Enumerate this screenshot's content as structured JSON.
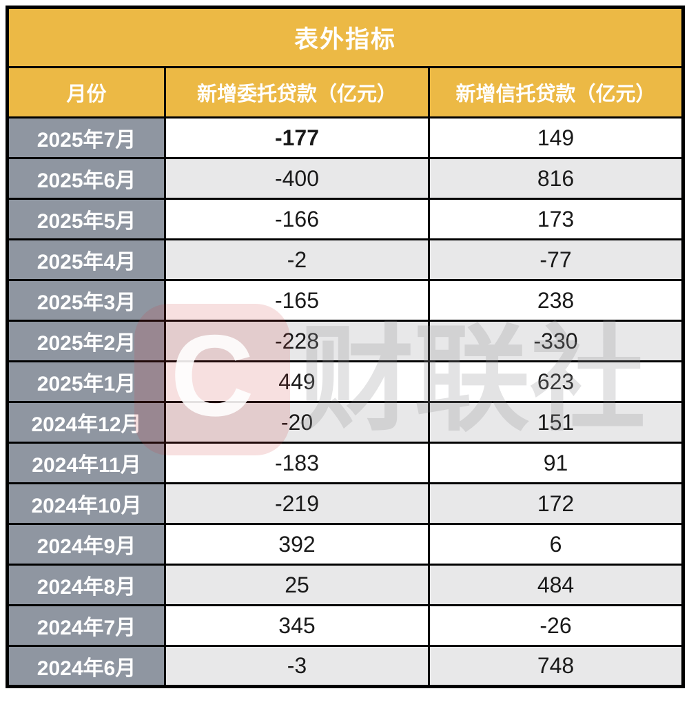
{
  "title": "表外指标",
  "table": {
    "columns": [
      "月份",
      "新增委托贷款（亿元）",
      "新增信托贷款（亿元）"
    ],
    "rows": [
      {
        "month": "2025年7月",
        "entrusted": "-177",
        "trust": "149"
      },
      {
        "month": "2025年6月",
        "entrusted": "-400",
        "trust": "816"
      },
      {
        "month": "2025年5月",
        "entrusted": "-166",
        "trust": "173"
      },
      {
        "month": "2025年4月",
        "entrusted": "-2",
        "trust": "-77"
      },
      {
        "month": "2025年3月",
        "entrusted": "-165",
        "trust": "238"
      },
      {
        "month": "2025年2月",
        "entrusted": "-228",
        "trust": "-330"
      },
      {
        "month": "2025年1月",
        "entrusted": "449",
        "trust": "623"
      },
      {
        "month": "2024年12月",
        "entrusted": "-20",
        "trust": "151"
      },
      {
        "month": "2024年11月",
        "entrusted": "-183",
        "trust": "91"
      },
      {
        "month": "2024年10月",
        "entrusted": "-219",
        "trust": "172"
      },
      {
        "month": "2024年9月",
        "entrusted": "392",
        "trust": "6"
      },
      {
        "month": "2024年8月",
        "entrusted": "25",
        "trust": "484"
      },
      {
        "month": "2024年7月",
        "entrusted": "345",
        "trust": "-26"
      },
      {
        "month": "2024年6月",
        "entrusted": "-3",
        "trust": "748"
      }
    ]
  },
  "watermark": {
    "logo_letter": "C",
    "text": "财联社"
  },
  "colors": {
    "header_orange": "#ECB945",
    "month_gray": "#8F96A1",
    "alt_row_gray": "#E8E8E9",
    "border_black": "#000000",
    "watermark_red": "rgba(205,65,65,0.16)"
  },
  "chart_data": {
    "type": "table",
    "title": "表外指标",
    "categories": [
      "2025年7月",
      "2025年6月",
      "2025年5月",
      "2025年4月",
      "2025年3月",
      "2025年2月",
      "2025年1月",
      "2024年12月",
      "2024年11月",
      "2024年10月",
      "2024年9月",
      "2024年8月",
      "2024年7月",
      "2024年6月"
    ],
    "series": [
      {
        "name": "新增委托贷款（亿元）",
        "values": [
          -177,
          -400,
          -166,
          -2,
          -165,
          -228,
          449,
          -20,
          -183,
          -219,
          392,
          25,
          345,
          -3
        ]
      },
      {
        "name": "新增信托贷款（亿元）",
        "values": [
          149,
          816,
          173,
          -77,
          238,
          -330,
          623,
          151,
          91,
          172,
          6,
          484,
          -26,
          748
        ]
      }
    ]
  }
}
